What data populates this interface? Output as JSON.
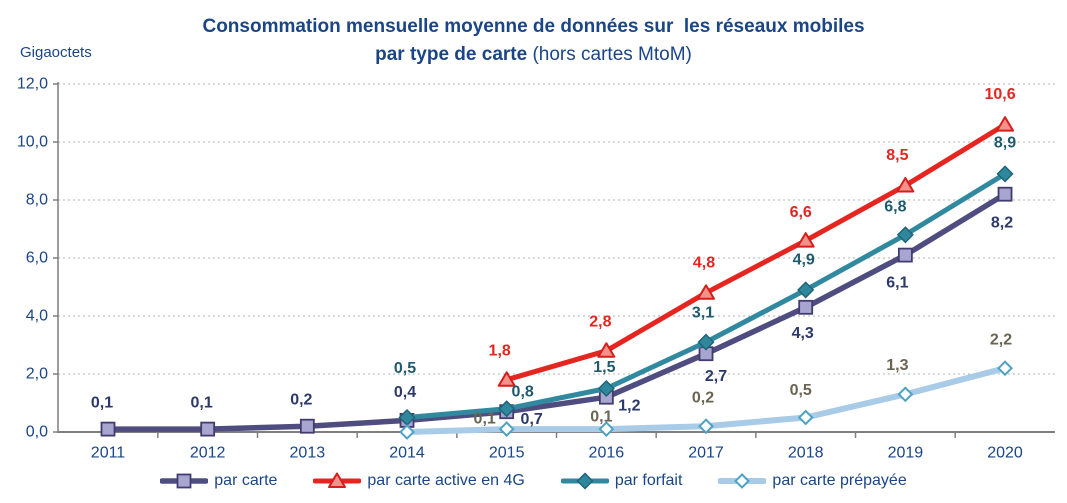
{
  "title": {
    "line1": "Consommation mensuelle moyenne de données sur  les réseaux mobiles",
    "line2_bold": "par type de carte",
    "line2_suffix": " (hors cartes MtoM)"
  },
  "colors": {
    "heading_text": "#1a4587",
    "axis_text": "#1a4587",
    "grid_line": "#b3b3b3",
    "axis_line": "#7f7f7f"
  },
  "chart_data": {
    "type": "line",
    "title": "Consommation mensuelle moyenne de données sur les réseaux mobiles par type de carte (hors cartes MtoM)",
    "ylabel": "Gigaoctets",
    "xlabel": "",
    "ylim": [
      0,
      12
    ],
    "ytick_step": 2,
    "ytick_labels": [
      "0,0",
      "2,0",
      "4,0",
      "6,0",
      "8,0",
      "10,0",
      "12,0"
    ],
    "grid": "horizontal-dotted",
    "legend_position": "bottom",
    "categories": [
      "2011",
      "2012",
      "2013",
      "2014",
      "2015",
      "2016",
      "2017",
      "2018",
      "2019",
      "2020"
    ],
    "series": [
      {
        "id": "par-carte",
        "name": "par carte",
        "start_index": 0,
        "values": [
          0.1,
          0.1,
          0.2,
          0.4,
          0.7,
          1.2,
          2.7,
          4.3,
          6.1,
          8.2
        ],
        "labels": [
          "0,1",
          "0,1",
          "0,2",
          "0,4",
          "0,7",
          "1,2",
          "2,7",
          "4,3",
          "6,1",
          "8,2"
        ],
        "line_color": "#4f4c80",
        "marker": "square",
        "marker_fill": "#a9a5d1",
        "marker_stroke": "#403d6e",
        "label_color": "#2d3a69",
        "line_width": 5.5,
        "label_offsets": [
          [
            -6,
            -26
          ],
          [
            -6,
            -26
          ],
          [
            -6,
            -26
          ],
          [
            -2,
            -28
          ],
          [
            25,
            8
          ],
          [
            23,
            9
          ],
          [
            10,
            23
          ],
          [
            -3,
            26
          ],
          [
            -8,
            28
          ],
          [
            -3,
            29
          ]
        ]
      },
      {
        "id": "par-carte-active-en-4g",
        "name": "par carte active en 4G",
        "start_index": 4,
        "values": [
          1.8,
          2.8,
          4.8,
          6.6,
          8.5,
          10.6
        ],
        "labels": [
          "1,8",
          "2,8",
          "4,8",
          "6,6",
          "8,5",
          "10,6"
        ],
        "line_color": "#e52520",
        "marker": "triangle",
        "marker_fill": "#f4918b",
        "marker_stroke": "#d41f1a",
        "label_color": "#e52520",
        "line_width": 5,
        "label_offsets": [
          [
            -7,
            -29
          ],
          [
            -6,
            -29
          ],
          [
            -2,
            -30
          ],
          [
            -5,
            -28
          ],
          [
            -8,
            -30
          ],
          [
            -5,
            -30
          ]
        ]
      },
      {
        "id": "par-forfait",
        "name": "par forfait",
        "start_index": 3,
        "values": [
          0.5,
          0.8,
          1.5,
          3.1,
          4.9,
          6.8,
          8.9
        ],
        "labels": [
          "0,5",
          "0,8",
          "1,5",
          "3,1",
          "4,9",
          "6,8",
          "8,9"
        ],
        "line_color": "#3189a0",
        "marker": "diamond",
        "marker_fill": "#2f879e",
        "marker_stroke": "#1f6478",
        "label_color": "#1f5a6e",
        "line_width": 5,
        "label_offsets": [
          [
            -2,
            -49
          ],
          [
            16,
            -17
          ],
          [
            -2,
            -21
          ],
          [
            -3,
            -29
          ],
          [
            -2,
            -30
          ],
          [
            -10,
            -28
          ],
          [
            0,
            -31
          ]
        ]
      },
      {
        "id": "par-carte-prepayee",
        "name": "par carte prépayée",
        "start_index": 3,
        "values": [
          0.0,
          0.1,
          0.1,
          0.2,
          0.5,
          1.3,
          2.2
        ],
        "labels": [
          null,
          "0,1",
          "0,1",
          "0,2",
          "0,5",
          "1,3",
          "2,2"
        ],
        "line_color": "#a8cbe8",
        "marker": "diamond-hollow",
        "marker_fill": "#ffffff",
        "marker_stroke": "#4da2c4",
        "label_color": "#6a6453",
        "line_width": 6,
        "label_offsets": [
          null,
          [
            -22,
            -10
          ],
          [
            -5,
            -12
          ],
          [
            -3,
            -28
          ],
          [
            -5,
            -27
          ],
          [
            -8,
            -29
          ],
          [
            -4,
            -28
          ]
        ]
      }
    ]
  }
}
